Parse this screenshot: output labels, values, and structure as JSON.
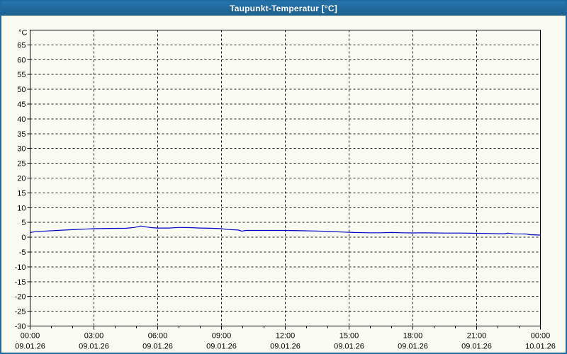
{
  "window": {
    "title": "Taupunkt-Temperatur [°C]",
    "title_bar_color": "#1f699e",
    "background_color": "#fbfcf1"
  },
  "chart_data": {
    "type": "line",
    "title": "Taupunkt-Temperatur [°C]",
    "ylabel": "°C",
    "xlabel": "",
    "ylim": [
      -30,
      70
    ],
    "y_tick_step": 5,
    "y_tick_values": [
      65,
      60,
      55,
      50,
      45,
      40,
      35,
      30,
      25,
      20,
      15,
      10,
      5,
      0,
      -5,
      -10,
      -15,
      -20,
      -25,
      -30
    ],
    "x_hours_span": 24,
    "x_major_interval_hours": 3,
    "x_minor_interval_hours": 1,
    "x_ticks": [
      {
        "hour": 0,
        "time": "00:00",
        "date": "09.01.26"
      },
      {
        "hour": 3,
        "time": "03:00",
        "date": "09.01.26"
      },
      {
        "hour": 6,
        "time": "06:00",
        "date": "09.01.26"
      },
      {
        "hour": 9,
        "time": "09:00",
        "date": "09.01.26"
      },
      {
        "hour": 12,
        "time": "12:00",
        "date": "09.01.26"
      },
      {
        "hour": 15,
        "time": "15:00",
        "date": "09.01.26"
      },
      {
        "hour": 18,
        "time": "18:00",
        "date": "09.01.26"
      },
      {
        "hour": 21,
        "time": "21:00",
        "date": "09.01.26"
      },
      {
        "hour": 24,
        "time": "00:00",
        "date": "10.01.26"
      }
    ],
    "grid": "dashed",
    "grid_color": "#1a1a1a",
    "legend": "none",
    "series": [
      {
        "name": "Taupunkt-Temperatur",
        "color": "#0000c8",
        "points": [
          [
            0,
            1.6
          ],
          [
            0.25,
            1.9
          ],
          [
            0.75,
            2.1
          ],
          [
            1.5,
            2.4
          ],
          [
            2.25,
            2.65
          ],
          [
            3,
            2.9
          ],
          [
            3.75,
            3.0
          ],
          [
            4.5,
            3.05
          ],
          [
            4.9,
            3.3
          ],
          [
            5.2,
            3.8
          ],
          [
            5.5,
            3.45
          ],
          [
            5.7,
            3.25
          ],
          [
            6,
            3.1
          ],
          [
            6.5,
            3.1
          ],
          [
            7,
            3.3
          ],
          [
            7.5,
            3.25
          ],
          [
            8,
            3.1
          ],
          [
            8.5,
            3.05
          ],
          [
            9,
            2.9
          ],
          [
            9.3,
            2.6
          ],
          [
            9.8,
            2.45
          ],
          [
            9.95,
            2.05
          ],
          [
            10.15,
            2.3
          ],
          [
            11,
            2.3
          ],
          [
            12,
            2.3
          ],
          [
            12.75,
            2.2
          ],
          [
            13.5,
            2.1
          ],
          [
            14,
            1.95
          ],
          [
            14.75,
            1.75
          ],
          [
            15.25,
            1.6
          ],
          [
            16,
            1.5
          ],
          [
            16.5,
            1.5
          ],
          [
            17,
            1.6
          ],
          [
            17.5,
            1.5
          ],
          [
            18,
            1.45
          ],
          [
            18.5,
            1.5
          ],
          [
            19,
            1.45
          ],
          [
            19.5,
            1.4
          ],
          [
            20.25,
            1.4
          ],
          [
            21,
            1.35
          ],
          [
            21.5,
            1.3
          ],
          [
            22,
            1.2
          ],
          [
            22.35,
            1.2
          ],
          [
            22.45,
            1.4
          ],
          [
            22.75,
            1.15
          ],
          [
            23.35,
            1.1
          ],
          [
            23.5,
            0.85
          ],
          [
            24,
            0.75
          ]
        ]
      }
    ]
  }
}
